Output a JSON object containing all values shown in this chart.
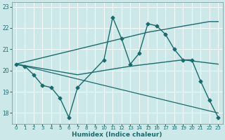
{
  "xlabel": "Humidex (Indice chaleur)",
  "bg_color": "#cde8e8",
  "line_color": "#1a6b6b",
  "grid_color": "#ffffff",
  "xlim": [
    -0.5,
    23.5
  ],
  "ylim": [
    17.5,
    23.2
  ],
  "xticks": [
    0,
    1,
    2,
    3,
    4,
    5,
    6,
    7,
    8,
    9,
    10,
    11,
    12,
    13,
    14,
    15,
    16,
    17,
    18,
    19,
    20,
    21,
    22,
    23
  ],
  "yticks": [
    18,
    19,
    20,
    21,
    22,
    23
  ],
  "series": [
    {
      "x": [
        0,
        1,
        2,
        3,
        4,
        5,
        6,
        7,
        10,
        11,
        12,
        13,
        14,
        15,
        16,
        17,
        18,
        19,
        20,
        21,
        22,
        23
      ],
      "y": [
        20.3,
        20.2,
        19.8,
        19.3,
        19.2,
        18.7,
        17.8,
        19.2,
        20.5,
        22.5,
        21.5,
        20.3,
        20.8,
        22.2,
        22.1,
        21.7,
        21.0,
        20.5,
        20.5,
        19.5,
        18.6,
        17.8
      ],
      "marker": "D",
      "markersize": 2.5,
      "linewidth": 1.0
    },
    {
      "x": [
        0,
        15,
        22,
        23
      ],
      "y": [
        20.3,
        21.8,
        22.3,
        22.3
      ],
      "marker": null,
      "markersize": 0,
      "linewidth": 1.0
    },
    {
      "x": [
        0,
        7,
        13,
        19,
        23
      ],
      "y": [
        20.3,
        19.8,
        20.2,
        20.5,
        20.3
      ],
      "marker": null,
      "markersize": 0,
      "linewidth": 1.0
    },
    {
      "x": [
        0,
        23
      ],
      "y": [
        20.3,
        18.0
      ],
      "marker": null,
      "markersize": 0,
      "linewidth": 0.9
    }
  ]
}
